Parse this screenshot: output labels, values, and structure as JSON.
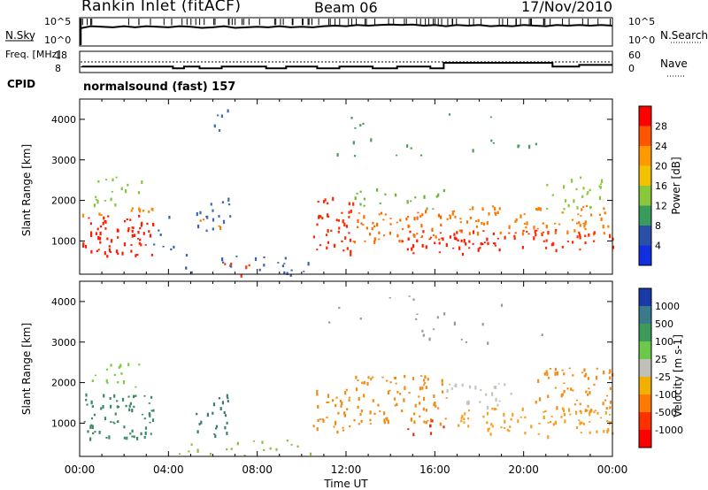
{
  "header": {
    "station": "Rankin Inlet (fitACF)",
    "beam": "Beam 06",
    "date": "17/Nov/2010"
  },
  "mode_line": {
    "cpid_label": "CPID",
    "program": "normalsound (fast) 157"
  },
  "chart_data": [
    {
      "type": "line",
      "panel": "noise",
      "ylabel_left": "N.Sky",
      "ylabel_right": "N.Search",
      "left_ticks": [
        "10^5",
        "10^0"
      ],
      "right_ticks": [
        "10^5",
        "10^0"
      ],
      "x_hours": [
        0,
        0.5,
        1,
        1.5,
        2,
        2.5,
        3,
        3.5,
        4,
        4.5,
        5,
        5.5,
        6,
        6.5,
        7,
        7.5,
        8,
        8.5,
        9,
        9.5,
        10,
        10.5,
        11,
        11.5,
        12,
        12.5,
        13,
        13.5,
        14,
        14.5,
        15,
        15.5,
        16,
        16.5,
        17,
        17.5,
        18,
        18.5,
        19,
        19.5,
        20,
        20.5,
        21,
        21.5,
        22,
        22.5,
        23,
        23.5,
        24
      ],
      "sky_level": [
        0.62,
        0.7,
        0.68,
        0.66,
        0.7,
        0.66,
        0.7,
        0.68,
        0.66,
        0.7,
        0.68,
        0.64,
        0.66,
        0.7,
        0.64,
        0.66,
        0.68,
        0.66,
        0.7,
        0.66,
        0.68,
        0.66,
        0.7,
        0.72,
        0.7,
        0.74,
        0.72,
        0.74,
        0.76,
        0.74,
        0.76,
        0.72,
        0.74,
        0.7,
        0.74,
        0.72,
        0.74,
        0.7,
        0.72,
        0.7,
        0.74,
        0.72,
        0.7,
        0.74,
        0.72,
        0.74,
        0.72,
        0.74,
        0.72
      ]
    },
    {
      "type": "line",
      "panel": "frequency",
      "ylabel_left": "Freq. [MHz]",
      "ylabel_right": "Nave",
      "left_ticks": [
        "18",
        "8"
      ],
      "right_ticks": [
        "60",
        "0"
      ],
      "freq_steps": [
        {
          "start": 0.1,
          "end": 4.2,
          "mhz": 10.8
        },
        {
          "start": 4.2,
          "end": 4.7,
          "mhz": 10.0
        },
        {
          "start": 4.7,
          "end": 5.4,
          "mhz": 10.8
        },
        {
          "start": 5.4,
          "end": 6.4,
          "mhz": 10.0
        },
        {
          "start": 6.4,
          "end": 8.4,
          "mhz": 10.8
        },
        {
          "start": 8.4,
          "end": 9.3,
          "mhz": 10.0
        },
        {
          "start": 9.3,
          "end": 10.7,
          "mhz": 10.8
        },
        {
          "start": 10.7,
          "end": 11.7,
          "mhz": 10.0
        },
        {
          "start": 11.7,
          "end": 13.2,
          "mhz": 10.8
        },
        {
          "start": 13.2,
          "end": 14.3,
          "mhz": 10.0
        },
        {
          "start": 14.3,
          "end": 15.8,
          "mhz": 10.8
        },
        {
          "start": 15.8,
          "end": 16.4,
          "mhz": 10.0
        },
        {
          "start": 16.4,
          "end": 21.3,
          "mhz": 12.6
        },
        {
          "start": 21.3,
          "end": 22.5,
          "mhz": 10.8
        },
        {
          "start": 22.5,
          "end": 24.0,
          "mhz": 11.6
        }
      ],
      "nave_level": 0.5
    },
    {
      "type": "heatmap",
      "panel": "power",
      "ylabel": "Slant Range [km]",
      "yticks": [
        1000,
        2000,
        3000,
        4000
      ],
      "ylim": [
        180,
        4500
      ],
      "xlim": [
        0,
        24
      ],
      "scale_label": "Power [dB]",
      "scale_ticks": [
        "28",
        "24",
        "20",
        "16",
        "12",
        "8",
        "4"
      ],
      "scale_colors": [
        "#ff0000",
        "#ff5500",
        "#ff9900",
        "#f2c200",
        "#88c83a",
        "#3a9c5c",
        "#2a4fa8",
        "#1030e0"
      ],
      "regions": [
        {
          "t0": 0.1,
          "t1": 3.3,
          "r0": 650,
          "r1": 1650,
          "color": "#ff1a00",
          "density": 0.95
        },
        {
          "t0": 0.1,
          "t1": 3.3,
          "r0": 1650,
          "r1": 1900,
          "color": "#ff8800",
          "density": 0.6
        },
        {
          "t0": 0.5,
          "t1": 2.8,
          "r0": 1900,
          "r1": 2650,
          "color": "#7ec83a",
          "density": 0.45
        },
        {
          "t0": 3.3,
          "t1": 4.3,
          "r0": 800,
          "r1": 1800,
          "color": "#2a6aa8",
          "density": 0.3
        },
        {
          "t0": 5.2,
          "t1": 6.8,
          "r0": 1200,
          "r1": 2100,
          "color": "#3a6ab8",
          "density": 0.5
        },
        {
          "t0": 5.4,
          "t1": 6.4,
          "r0": 1300,
          "r1": 1600,
          "color": "#ff7700",
          "density": 0.6
        },
        {
          "t0": 5.8,
          "t1": 7.0,
          "r0": 3600,
          "r1": 4300,
          "color": "#3a6ab8",
          "density": 0.25
        },
        {
          "t0": 4.6,
          "t1": 10.4,
          "r0": 180,
          "r1": 700,
          "color": "#3a5fb0",
          "density": 0.35
        },
        {
          "t0": 6.2,
          "t1": 7.6,
          "r0": 180,
          "r1": 500,
          "color": "#ff3300",
          "density": 0.5
        },
        {
          "t0": 10.5,
          "t1": 12.3,
          "r0": 700,
          "r1": 2100,
          "color": "#ff2a00",
          "density": 0.75
        },
        {
          "t0": 12.3,
          "t1": 16.5,
          "r0": 1000,
          "r1": 1800,
          "color": "#ff6a00",
          "density": 0.75
        },
        {
          "t0": 12.3,
          "t1": 16.5,
          "r0": 1800,
          "r1": 2300,
          "color": "#6fb43a",
          "density": 0.4
        },
        {
          "t0": 14.5,
          "t1": 19.0,
          "r0": 700,
          "r1": 1300,
          "color": "#ff1a00",
          "density": 0.85
        },
        {
          "t0": 16.5,
          "t1": 24.0,
          "r0": 1200,
          "r1": 1900,
          "color": "#ff7a00",
          "density": 0.7
        },
        {
          "t0": 19.0,
          "t1": 24.0,
          "r0": 800,
          "r1": 1300,
          "color": "#ff2a00",
          "density": 0.7
        },
        {
          "t0": 21.0,
          "t1": 24.0,
          "r0": 1800,
          "r1": 2600,
          "color": "#8cc83a",
          "density": 0.45
        },
        {
          "t0": 11.0,
          "t1": 21.0,
          "r0": 3000,
          "r1": 4200,
          "color": "#4a9c5c",
          "density": 0.08
        }
      ]
    },
    {
      "type": "heatmap",
      "panel": "velocity",
      "ylabel": "Slant Range [km]",
      "yticks": [
        1000,
        2000,
        3000,
        4000
      ],
      "ylim": [
        180,
        4500
      ],
      "xlim": [
        0,
        24
      ],
      "xticks": [
        "00:00",
        "04:00",
        "08:00",
        "12:00",
        "16:00",
        "20:00",
        "00:00"
      ],
      "xlabel": "Time UT",
      "scale_label": "Velocity [m s-1]",
      "scale_ticks": [
        "1000",
        "500",
        "100",
        "25",
        "-25",
        "-100",
        "-500",
        "-1000"
      ],
      "scale_colors": [
        "#1a3aa8",
        "#3a7a8c",
        "#3c9a5a",
        "#6cc84a",
        "#c0c0b8",
        "#f2b000",
        "#ff7a00",
        "#ff3000",
        "#ff0000"
      ],
      "regions": [
        {
          "t0": 0.1,
          "t1": 3.3,
          "r0": 650,
          "r1": 1750,
          "color": "#3c8a64",
          "density": 0.9
        },
        {
          "t0": 0.5,
          "t1": 2.8,
          "r0": 1900,
          "r1": 2500,
          "color": "#7ccc44",
          "density": 0.5
        },
        {
          "t0": 5.2,
          "t1": 6.8,
          "r0": 700,
          "r1": 1800,
          "color": "#3c7a74",
          "density": 0.55
        },
        {
          "t0": 4.2,
          "t1": 10.5,
          "r0": 180,
          "r1": 600,
          "color": "#8cbc44",
          "density": 0.3
        },
        {
          "t0": 10.5,
          "t1": 12.3,
          "r0": 800,
          "r1": 2000,
          "color": "#f08a10",
          "density": 0.7
        },
        {
          "t0": 12.3,
          "t1": 16.5,
          "r0": 1000,
          "r1": 2200,
          "color": "#f28a14",
          "density": 0.75
        },
        {
          "t0": 16.5,
          "t1": 19.5,
          "r0": 1400,
          "r1": 2000,
          "color": "#c4c4bc",
          "density": 0.6
        },
        {
          "t0": 16.5,
          "t1": 24.0,
          "r0": 700,
          "r1": 1400,
          "color": "#f5a020",
          "density": 0.7
        },
        {
          "t0": 20.5,
          "t1": 24.0,
          "r0": 1300,
          "r1": 2400,
          "color": "#f58a14",
          "density": 0.7
        },
        {
          "t0": 14.5,
          "t1": 16.5,
          "r0": 700,
          "r1": 1100,
          "color": "#e03010",
          "density": 0.4
        },
        {
          "t0": 11.0,
          "t1": 21.0,
          "r0": 3000,
          "r1": 4200,
          "color": "#9a9a90",
          "density": 0.08
        }
      ]
    }
  ]
}
